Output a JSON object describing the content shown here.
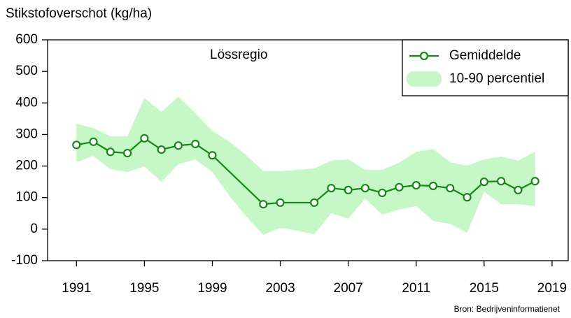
{
  "chart_data": {
    "type": "line",
    "title": "Stikstofoverschot (kg/ha)",
    "annotation": "Lössregio",
    "source": "Bron: Bedrijveninformatienet",
    "xlim": [
      1989.3,
      2019.95
    ],
    "ylim": [
      -100,
      600
    ],
    "xticks": [
      1991,
      1995,
      1999,
      2003,
      2007,
      2011,
      2015,
      2019
    ],
    "yticks": [
      -100,
      0,
      100,
      200,
      300,
      400,
      500,
      600
    ],
    "legend": "top-right",
    "series": [
      {
        "name": "Gemiddelde",
        "color": "#138a13",
        "x": [
          1991,
          1992,
          1993,
          1994,
          1995,
          1996,
          1997,
          1998,
          1999,
          2002,
          2003,
          2005,
          2006,
          2007,
          2008,
          2009,
          2010,
          2011,
          2012,
          2013,
          2014,
          2015,
          2016,
          2017,
          2018
        ],
        "values": [
          267,
          277,
          245,
          241,
          288,
          252,
          265,
          270,
          234,
          79,
          84,
          84,
          130,
          124,
          130,
          115,
          133,
          139,
          137,
          130,
          101,
          150,
          152,
          124,
          152
        ]
      }
    ],
    "band": {
      "name": "10-90 percentiel",
      "color": "#c6f7c6",
      "x": [
        1991,
        1992,
        1993,
        1994,
        1995,
        1996,
        1997,
        1998,
        1999,
        2000,
        2001,
        2002,
        2003,
        2004,
        2005,
        2006,
        2007,
        2008,
        2009,
        2010,
        2011,
        2012,
        2013,
        2014,
        2015,
        2016,
        2017,
        2018
      ],
      "upper": [
        334,
        320,
        294,
        294,
        416,
        371,
        420,
        367,
        311,
        277,
        234,
        184,
        184,
        188,
        192,
        217,
        221,
        188,
        188,
        210,
        245,
        254,
        212,
        201,
        221,
        230,
        217,
        245
      ],
      "lower": [
        212,
        232,
        190,
        181,
        199,
        150,
        206,
        221,
        181,
        106,
        40,
        -18,
        4,
        -5,
        -16,
        51,
        33,
        97,
        46,
        62,
        73,
        26,
        17,
        -12,
        119,
        79,
        79,
        73
      ]
    }
  }
}
